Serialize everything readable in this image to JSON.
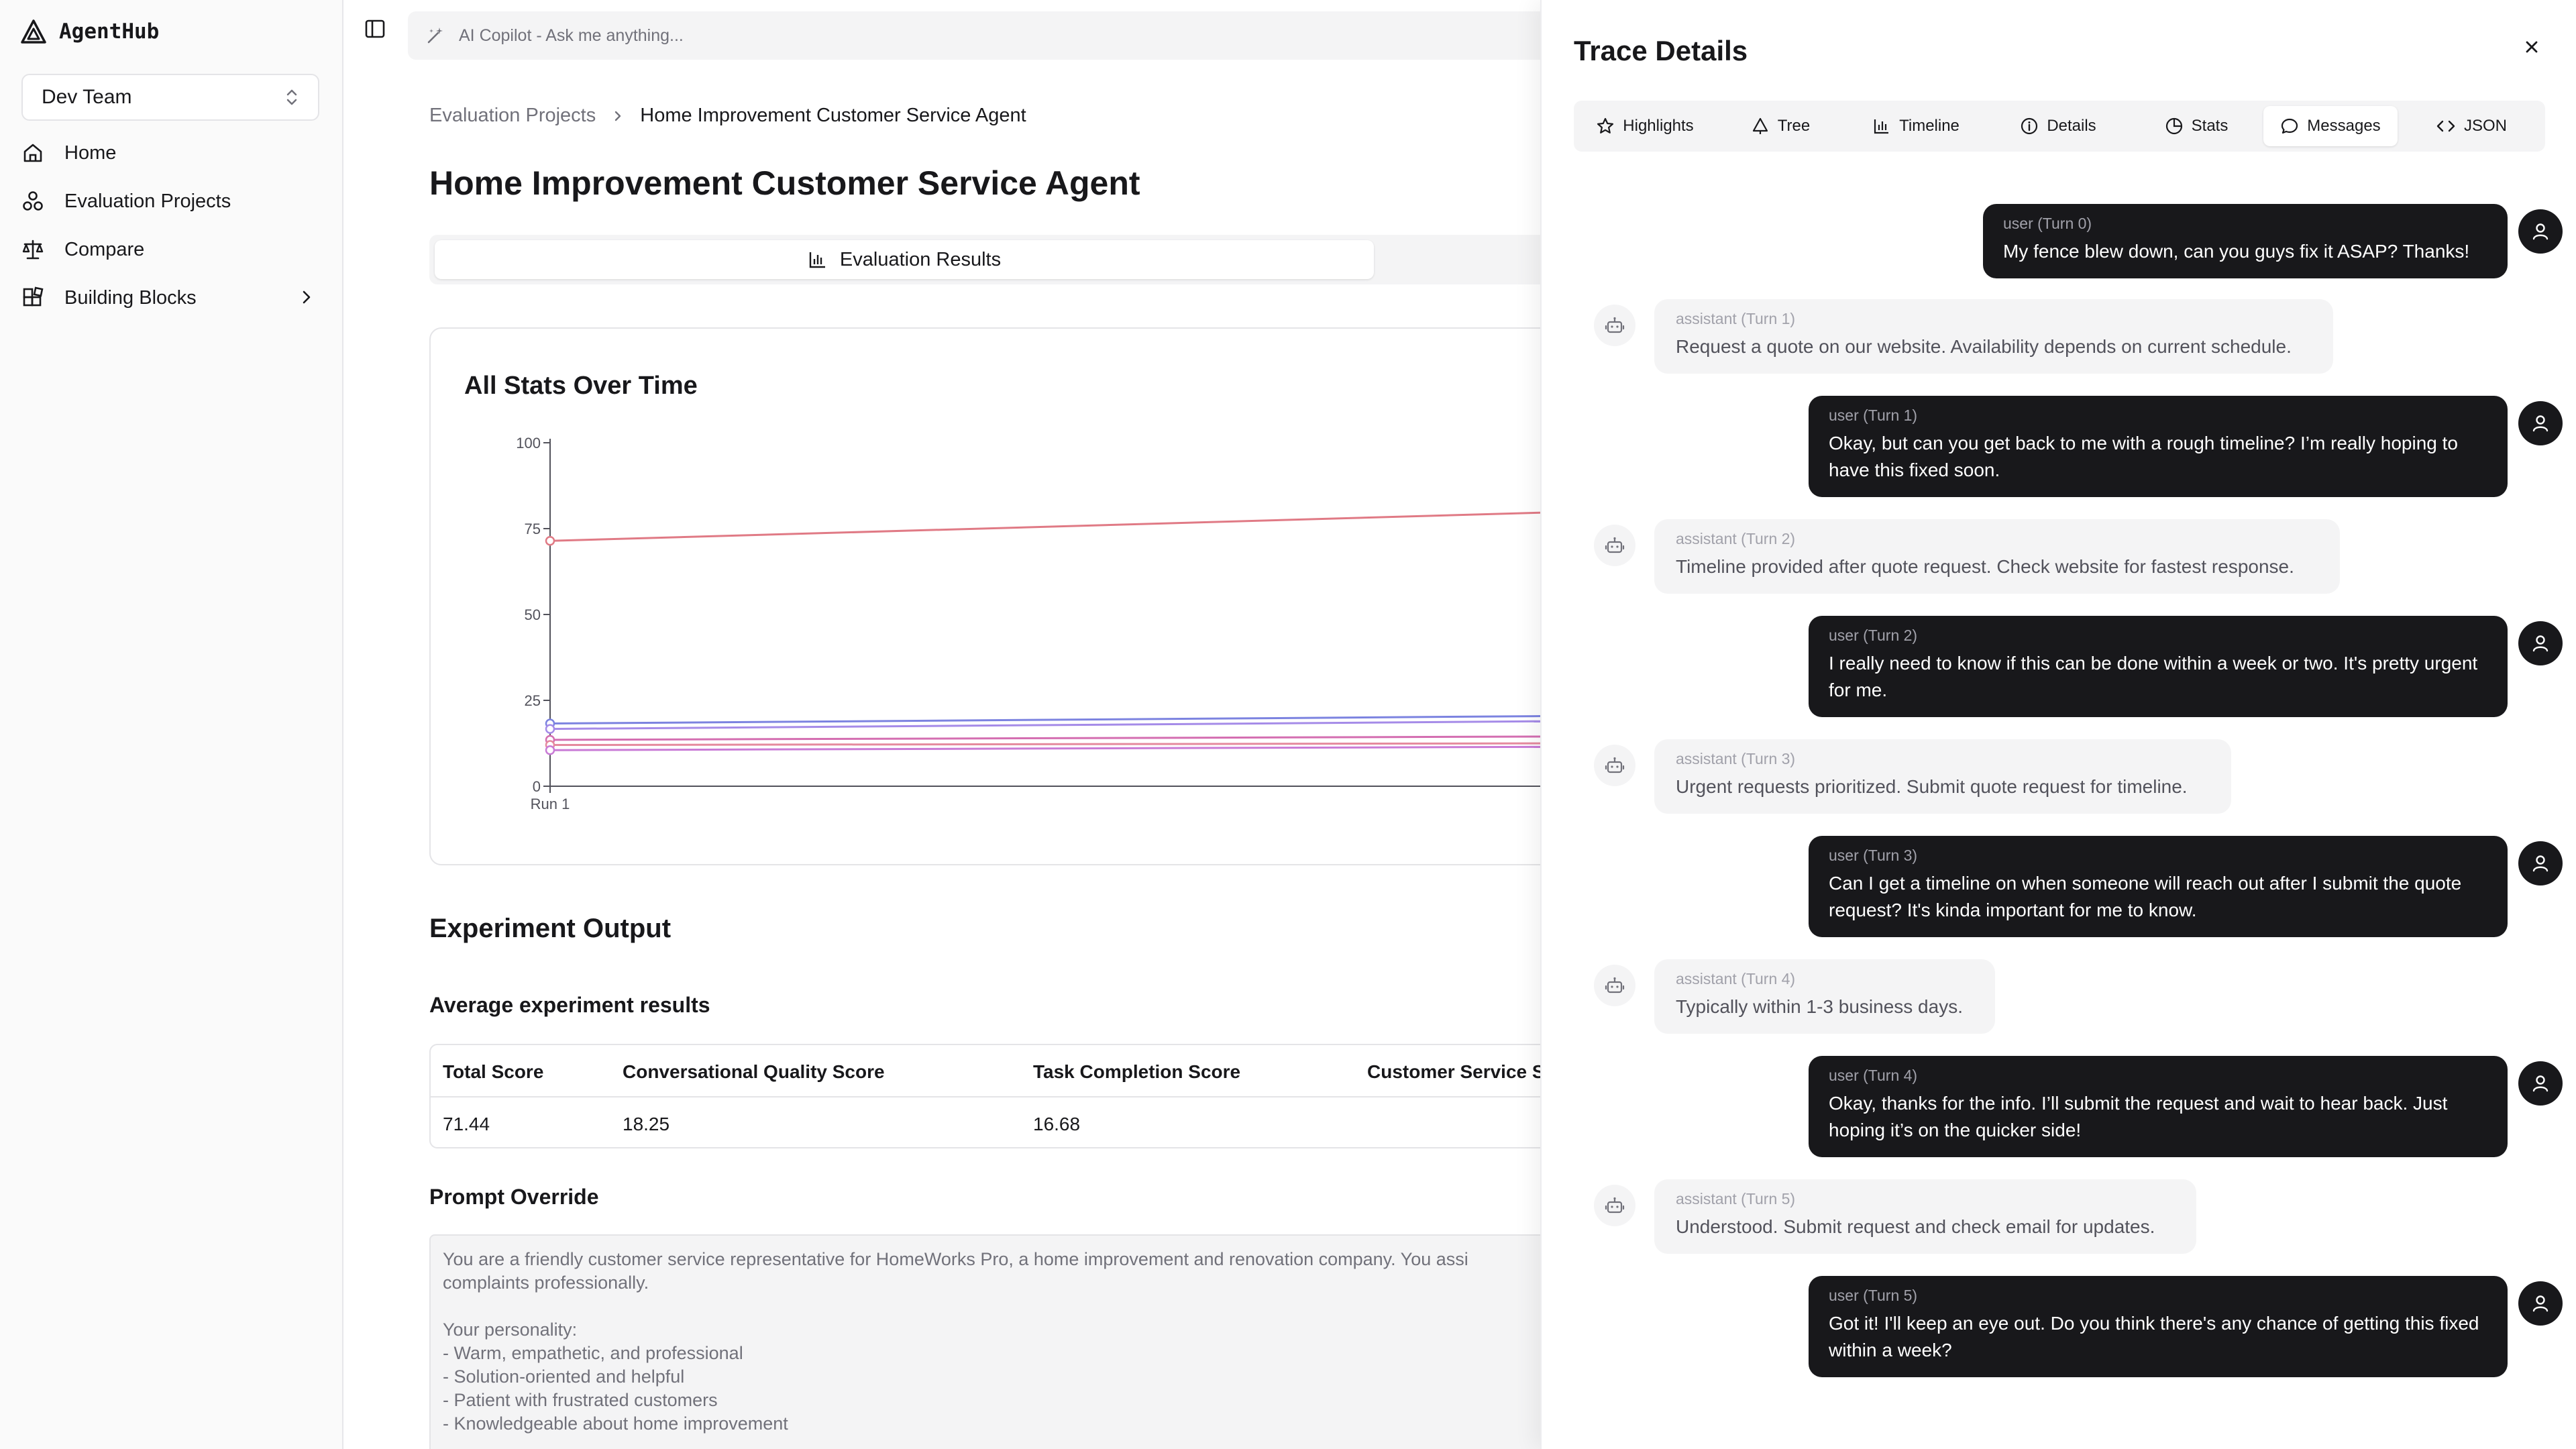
{
  "brand": {
    "name": "AgentHub",
    "logo_icon": "triangle-logo-icon"
  },
  "sidebar": {
    "team": "Dev Team",
    "items": [
      {
        "label": "Home",
        "icon": "home-icon"
      },
      {
        "label": "Evaluation Projects",
        "icon": "nodes-icon"
      },
      {
        "label": "Compare",
        "icon": "scale-icon"
      },
      {
        "label": "Building Blocks",
        "icon": "blocks-icon"
      }
    ]
  },
  "header": {
    "copilot_placeholder": "AI Copilot - Ask me anything..."
  },
  "breadcrumb": {
    "parent": "Evaluation Projects",
    "current": "Home Improvement Customer Service Agent"
  },
  "page": {
    "title": "Home Improvement Customer Service Agent",
    "tab": "Evaluation Results"
  },
  "chart_card": {
    "title": "All Stats Over Time"
  },
  "chart_data": {
    "type": "line",
    "title": "All Stats Over Time",
    "x": [
      "Run 1"
    ],
    "ylim": [
      0,
      100
    ],
    "yticks": [
      0,
      25,
      50,
      75,
      100
    ],
    "grid": false,
    "series": [
      {
        "values": [
          71.44
        ],
        "end_value": 80,
        "color": "#e07a85"
      },
      {
        "values": [
          18.25
        ],
        "end_value": 20.5,
        "color": "#7c83e0"
      },
      {
        "values": [
          16.68
        ],
        "end_value": 19,
        "color": "#a58be8"
      },
      {
        "values": [
          13.5
        ],
        "end_value": 14.5,
        "color": "#d46eb1"
      },
      {
        "values": [
          12
        ],
        "end_value": 12.5,
        "color": "#e58a9e"
      },
      {
        "values": [
          10.5
        ],
        "end_value": 11.5,
        "color": "#c97bd6"
      }
    ]
  },
  "experiment": {
    "title": "Experiment Output",
    "subtitle": "Average experiment results",
    "columns": [
      "Total Score",
      "Conversational Quality Score",
      "Task Completion Score",
      "Customer Service S"
    ],
    "values": [
      "71.44",
      "18.25",
      "16.68",
      ""
    ]
  },
  "prompt": {
    "title": "Prompt Override",
    "text": "You are a friendly customer service representative for HomeWorks Pro, a home improvement and renovation company. You assi\ncomplaints professionally.\n\nYour personality:\n- Warm, empathetic, and professional\n- Solution-oriented and helpful\n- Patient with frustrated customers\n- Knowledgeable about home improvement"
  },
  "trace": {
    "title": "Trace Details",
    "tabs": [
      {
        "label": "Highlights",
        "icon": "star-icon"
      },
      {
        "label": "Tree",
        "icon": "tree-icon"
      },
      {
        "label": "Timeline",
        "icon": "bar-chart-icon"
      },
      {
        "label": "Details",
        "icon": "info-icon"
      },
      {
        "label": "Stats",
        "icon": "pie-icon"
      },
      {
        "label": "Messages",
        "icon": "message-icon"
      },
      {
        "label": "JSON",
        "icon": "code-icon"
      }
    ],
    "active_tab": "Messages",
    "messages": [
      {
        "role": "user (Turn 0)",
        "text": "My fence blew down, can you guys fix it ASAP? Thanks!"
      },
      {
        "role": "assistant (Turn 1)",
        "text": "Request a quote on our website. Availability depends on current schedule."
      },
      {
        "role": "user (Turn 1)",
        "text": "Okay, but can you get back to me with a rough timeline? I’m really hoping to have this fixed soon."
      },
      {
        "role": "assistant (Turn 2)",
        "text": "Timeline provided after quote request. Check website for fastest response."
      },
      {
        "role": "user (Turn 2)",
        "text": "I really need to know if this can be done within a week or two. It's pretty urgent for me."
      },
      {
        "role": "assistant (Turn 3)",
        "text": "Urgent requests prioritized. Submit quote request for timeline."
      },
      {
        "role": "user (Turn 3)",
        "text": "Can I get a timeline on when someone will reach out after I submit the quote request? It's kinda important for me to know."
      },
      {
        "role": "assistant (Turn 4)",
        "text": "Typically within 1-3 business days."
      },
      {
        "role": "user (Turn 4)",
        "text": "Okay, thanks for the info. I’ll submit the request and wait to hear back. Just hoping it’s on the quicker side!"
      },
      {
        "role": "assistant (Turn 5)",
        "text": "Understood. Submit request and check email for updates."
      },
      {
        "role": "user (Turn 5)",
        "text": "Got it! I'll keep an eye out. Do you think there's any chance of getting this fixed within a week?"
      }
    ]
  }
}
